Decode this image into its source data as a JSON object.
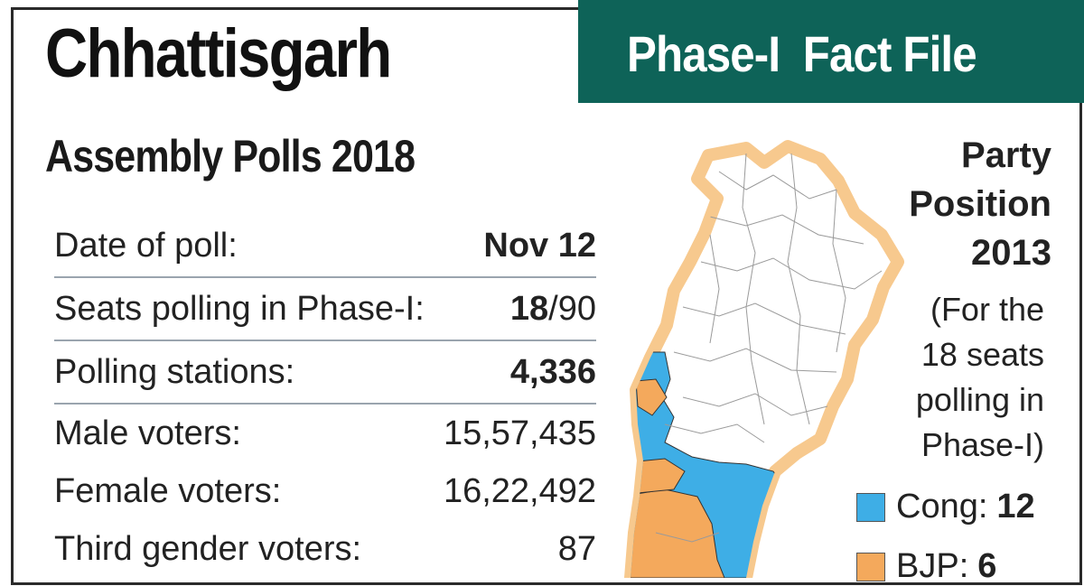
{
  "title": "Chhattisgarh",
  "subtitle": "Assembly Polls 2018",
  "banner": "Phase-I  Fact File",
  "facts": [
    {
      "label": "Date of poll:",
      "value_bold": "Nov 12",
      "value_rest": ""
    },
    {
      "label": "Seats polling in Phase-I:",
      "value_bold": "18",
      "value_rest": "/90"
    },
    {
      "label": "Polling stations:",
      "value_bold": "4,336",
      "value_rest": ""
    },
    {
      "label": "Male voters:",
      "value_bold": "",
      "value_rest": "15,57,435"
    },
    {
      "label": "Female voters:",
      "value_bold": "",
      "value_rest": "16,22,492"
    },
    {
      "label": "Third gender voters:",
      "value_bold": "",
      "value_rest": "87"
    }
  ],
  "legend": {
    "title_lines": [
      "Party",
      "Position",
      "2013"
    ],
    "note_lines": [
      "(For the",
      "18 seats",
      "polling in",
      "Phase-I)"
    ],
    "items": [
      {
        "label": "Cong:",
        "value": "12",
        "color": "#3eaee6"
      },
      {
        "label": "BJP:",
        "value": "6",
        "color": "#f4a95c"
      }
    ]
  },
  "colors": {
    "banner": "#0e6358",
    "congress": "#3eaee6",
    "bjp": "#f4a95c",
    "map_outline": "#f7c98e"
  }
}
